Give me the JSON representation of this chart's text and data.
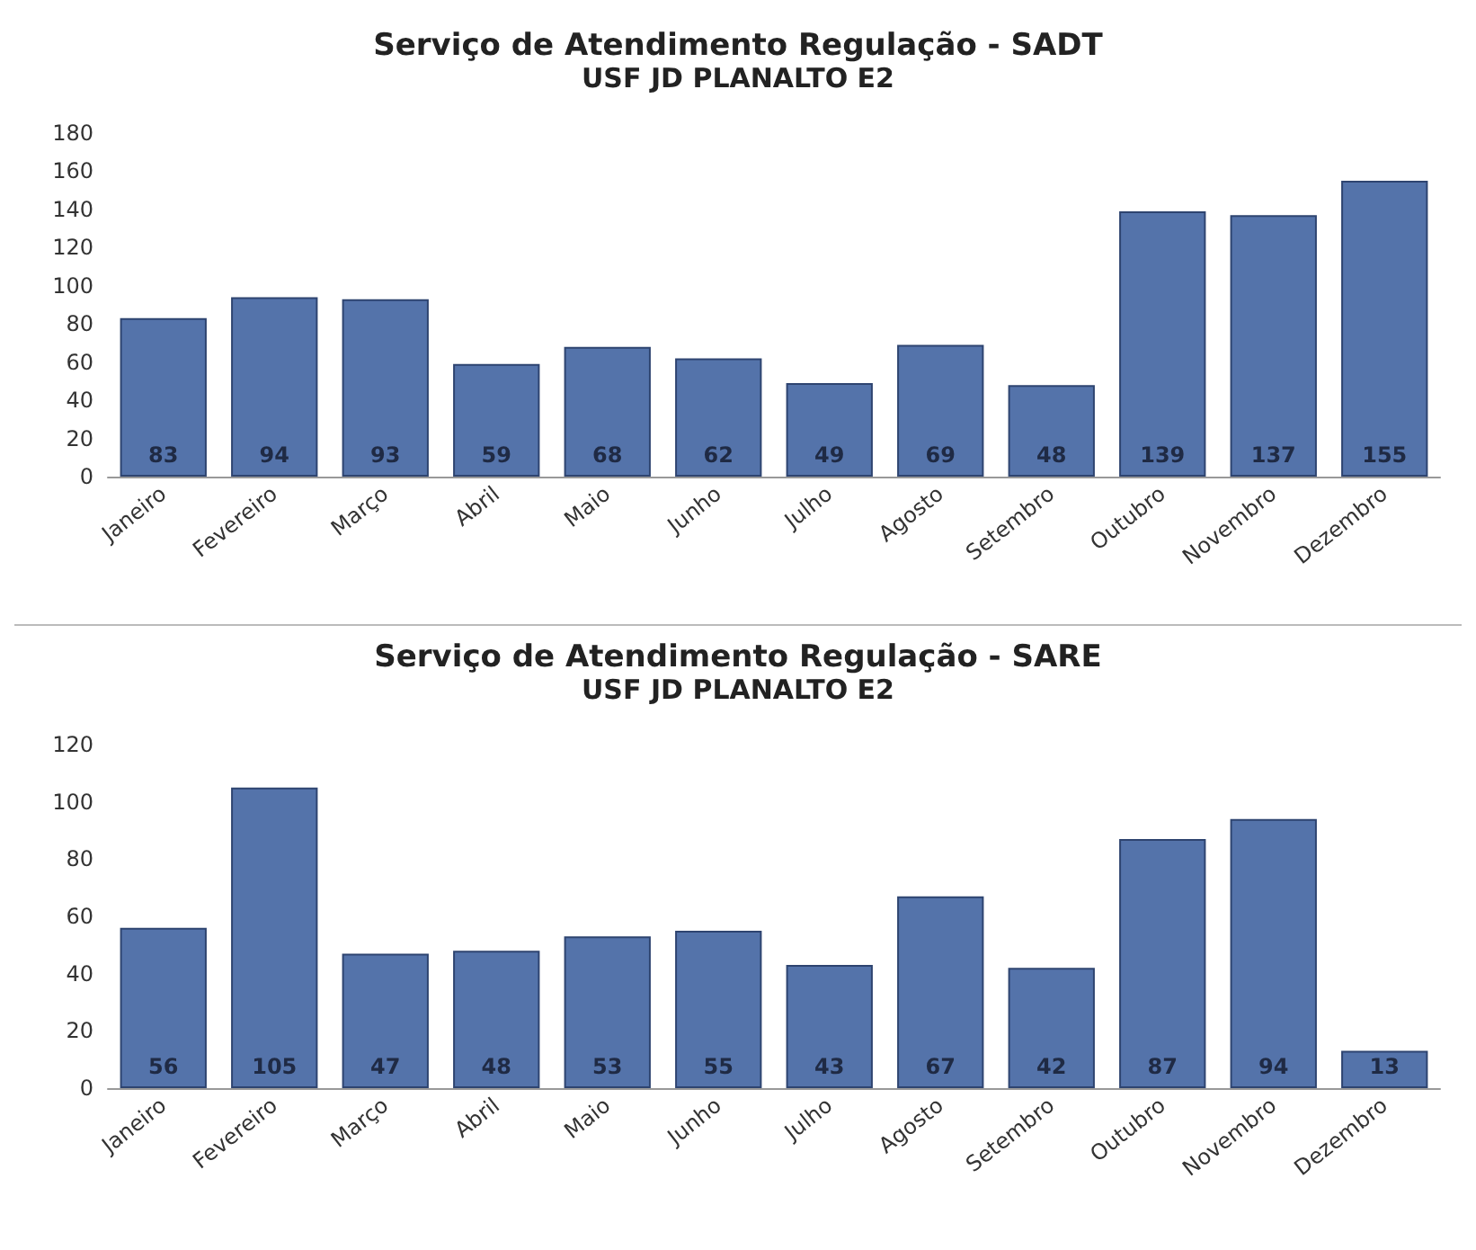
{
  "chart_data": [
    {
      "type": "bar",
      "title": "Serviço de Atendimento Regulação - SADT",
      "subtitle": "USF JD PLANALTO E2",
      "categories": [
        "Janeiro",
        "Fevereiro",
        "Março",
        "Abril",
        "Maio",
        "Junho",
        "Julho",
        "Agosto",
        "Setembro",
        "Outubro",
        "Novembro",
        "Dezembro"
      ],
      "values": [
        83,
        94,
        93,
        59,
        68,
        62,
        49,
        69,
        48,
        139,
        137,
        155
      ],
      "color": "#5473aa",
      "ylim": [
        0,
        180
      ],
      "yticks": [
        0,
        20,
        40,
        60,
        80,
        100,
        120,
        140,
        160,
        180
      ],
      "grid": false,
      "data_labels": true
    },
    {
      "type": "bar",
      "title": "Serviço de Atendimento Regulação - SARE",
      "subtitle": "USF JD PLANALTO E2",
      "categories": [
        "Janeiro",
        "Fevereiro",
        "Março",
        "Abril",
        "Maio",
        "Junho",
        "Julho",
        "Agosto",
        "Setembro",
        "Outubro",
        "Novembro",
        "Dezembro"
      ],
      "values": [
        56,
        105,
        47,
        48,
        53,
        55,
        43,
        67,
        42,
        87,
        94,
        13
      ],
      "color": "#5473aa",
      "ylim": [
        0,
        120
      ],
      "yticks": [
        0,
        20,
        40,
        60,
        80,
        100,
        120
      ],
      "grid": false,
      "data_labels": true
    }
  ]
}
